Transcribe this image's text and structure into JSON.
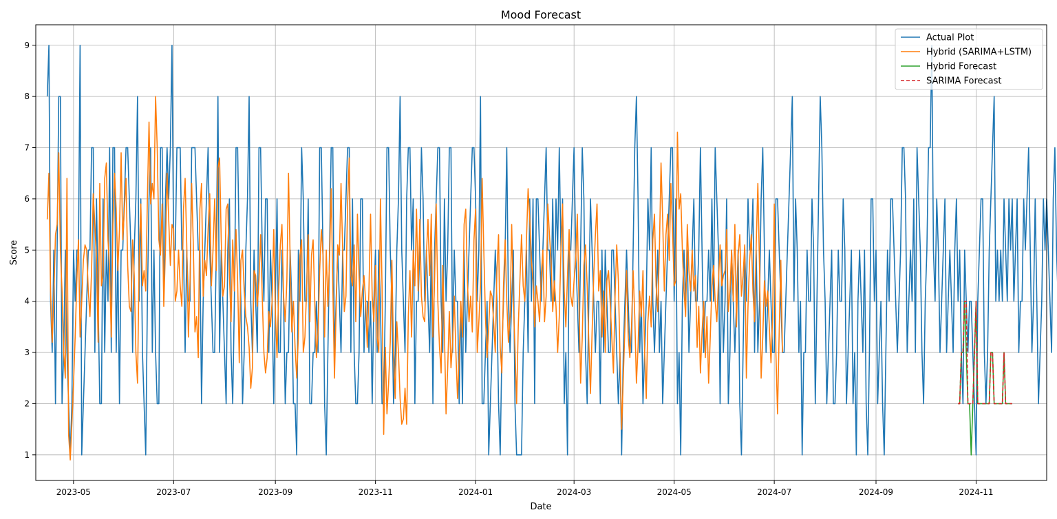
{
  "chart_data": {
    "type": "line",
    "title": "Mood Forecast",
    "xlabel": "Date",
    "ylabel": "Score",
    "xlim": [
      "2023-04-08",
      "2024-12-14"
    ],
    "ylim": [
      0.5,
      9.4
    ],
    "grid": true,
    "legend_position": "top-right",
    "x_ticks": [
      "2023-05",
      "2023-07",
      "2023-09",
      "2023-11",
      "2024-01",
      "2024-03",
      "2024-05",
      "2024-07",
      "2024-09",
      "2024-11"
    ],
    "y_ticks": [
      1,
      2,
      3,
      4,
      5,
      6,
      7,
      8,
      9
    ],
    "colors": {
      "actual": "#1f77b4",
      "hybrid": "#ff7f0e",
      "hybrid_forecast": "#2ca02c",
      "sarima_forecast": "#d62728"
    },
    "series": [
      {
        "name": "Actual Plot",
        "start_date": "2023-04-15",
        "values": [
          8,
          9,
          4,
          3,
          5,
          2,
          5,
          8,
          8,
          2,
          3,
          5,
          3,
          2,
          1,
          2,
          5,
          4,
          5,
          5,
          9,
          1,
          2,
          3,
          4,
          5,
          5,
          7,
          7,
          3,
          6,
          4,
          2,
          2,
          6,
          3,
          5,
          4,
          7,
          3,
          7,
          7,
          3,
          5,
          2,
          5,
          5,
          6,
          7,
          7,
          6,
          5,
          3,
          5,
          6,
          8,
          4,
          6,
          3,
          2,
          1,
          4,
          6,
          7,
          3,
          5,
          3,
          2,
          2,
          7,
          7,
          4,
          6,
          7,
          6,
          7,
          9,
          5,
          5,
          7,
          7,
          7,
          5,
          5,
          3,
          5,
          4,
          4,
          7,
          7,
          7,
          6,
          5,
          5,
          2,
          4,
          5,
          6,
          7,
          5,
          4,
          3,
          3,
          5,
          8,
          3,
          5,
          4,
          3,
          2,
          5,
          6,
          3,
          2,
          4,
          7,
          7,
          5,
          4,
          2,
          3,
          5,
          6,
          8,
          4,
          3,
          5,
          4,
          3,
          7,
          7,
          5,
          4,
          6,
          6,
          3,
          5,
          4,
          2,
          4,
          6,
          3,
          3,
          5,
          4,
          2,
          3,
          3,
          5,
          4,
          2,
          2,
          1,
          5,
          4,
          7,
          6,
          4,
          4,
          6,
          2,
          2,
          3,
          3,
          4,
          3,
          7,
          7,
          5,
          2,
          1,
          3,
          5,
          7,
          7,
          3,
          4,
          5,
          4,
          3,
          5,
          5,
          6,
          7,
          7,
          3,
          6,
          3,
          2,
          2,
          3,
          6,
          6,
          3,
          4,
          4,
          3,
          4,
          2,
          4,
          5,
          3,
          5,
          4,
          2,
          2,
          4,
          7,
          7,
          5,
          4,
          2,
          3,
          5,
          6,
          8,
          5,
          4,
          3,
          6,
          7,
          7,
          5,
          6,
          2,
          4,
          4,
          5,
          7,
          6,
          4,
          5,
          4,
          3,
          5,
          2,
          5,
          6,
          7,
          7,
          4,
          3,
          6,
          4,
          5,
          7,
          7,
          3,
          5,
          4,
          4,
          2,
          4,
          2,
          5,
          3,
          4,
          5,
          6,
          7,
          7,
          6,
          4,
          5,
          8,
          2,
          2,
          3,
          4,
          1,
          2,
          3,
          4,
          5,
          4,
          2,
          1,
          3,
          4,
          5,
          7,
          4,
          3,
          4,
          5,
          2,
          1,
          1,
          1,
          1,
          3,
          4,
          5,
          3,
          6,
          4,
          6,
          2,
          6,
          6,
          5,
          4,
          5,
          6,
          7,
          5,
          5,
          4,
          6,
          4,
          6,
          5,
          7,
          5,
          6,
          2,
          3,
          1,
          5,
          5,
          6,
          7,
          5,
          4,
          3,
          5,
          7,
          6,
          3,
          2,
          4,
          6,
          5,
          4,
          3,
          4,
          4,
          2,
          5,
          3,
          5,
          4,
          3,
          3,
          5,
          5,
          4,
          3,
          2,
          3,
          1,
          3,
          4,
          5,
          4,
          3,
          3,
          5,
          7,
          8,
          6,
          3,
          4,
          2,
          3,
          4,
          6,
          5,
          7,
          4,
          3,
          4,
          5,
          3,
          4,
          2,
          3,
          4,
          5,
          6,
          7,
          7,
          4,
          6,
          2,
          3,
          1,
          4,
          5,
          4,
          5,
          3,
          4,
          5,
          6,
          4,
          4,
          5,
          7,
          5,
          3,
          4,
          4,
          5,
          4,
          6,
          4,
          7,
          6,
          5,
          2,
          5,
          3,
          4,
          6,
          2,
          3,
          5,
          4,
          3,
          4,
          5,
          2,
          1,
          3,
          5,
          4,
          6,
          5,
          5,
          6,
          3,
          5,
          3,
          4,
          6,
          7,
          5,
          3,
          4,
          5,
          4,
          3,
          3,
          6,
          6,
          5,
          4,
          3,
          3,
          4,
          5,
          6,
          7,
          8,
          4,
          6,
          5,
          3,
          4,
          1,
          3,
          3,
          5,
          4,
          4,
          6,
          5,
          2,
          4,
          6,
          8,
          7,
          5,
          4,
          2,
          3,
          4,
          5,
          2,
          2,
          3,
          5,
          4,
          4,
          6,
          5,
          2,
          3,
          4,
          5,
          2,
          3,
          1,
          4,
          5,
          4,
          3,
          5,
          2,
          1,
          3,
          6,
          6,
          4,
          5,
          2,
          3,
          4,
          2,
          1,
          3,
          5,
          4,
          6,
          6,
          5,
          4,
          3,
          4,
          5,
          7,
          7,
          6,
          3,
          4,
          5,
          4,
          6,
          3,
          7,
          6,
          5,
          3,
          2,
          4,
          5,
          7,
          7,
          9,
          5,
          4,
          6,
          5,
          3,
          4,
          5,
          6,
          3,
          4,
          5,
          4,
          3,
          5,
          6,
          4,
          5,
          3,
          2,
          5,
          4,
          3,
          4,
          4,
          3,
          2,
          1,
          4,
          5,
          6,
          6,
          3,
          2,
          3,
          5,
          6,
          7,
          8,
          4,
          5,
          4,
          5,
          4,
          6,
          5,
          4,
          6,
          5,
          6,
          4,
          5,
          6,
          3,
          4,
          4,
          6,
          5,
          6,
          7,
          5,
          3,
          4,
          6,
          4,
          2,
          3,
          4,
          6,
          5,
          6,
          5,
          4,
          3,
          6,
          7,
          5,
          4,
          3,
          2,
          1,
          6,
          5,
          2,
          2,
          2,
          3,
          3,
          4,
          4,
          2
        ]
      },
      {
        "name": "Hybrid (SARIMA+LSTM)",
        "start_date": "2023-04-15",
        "values": [
          5.6,
          6.5,
          4.2,
          3.2,
          4.1,
          5.3,
          5.5,
          6.9,
          5.0,
          4.2,
          3.0,
          2.5,
          6.4,
          1.4,
          0.9,
          1.6,
          2.4,
          3.3,
          4.4,
          5.2,
          3.3,
          4.0,
          4.8,
          5.1,
          5.0,
          4.2,
          3.7,
          4.6,
          6.1,
          5.5,
          4.8,
          3.2,
          6.3,
          4.3,
          4.5,
          6.4,
          6.7,
          5.2,
          4.6,
          3.3,
          5.5,
          6.5,
          5.8,
          4.6,
          5.4,
          6.9,
          5.2,
          5.8,
          6.4,
          4.7,
          3.9,
          3.8,
          5.2,
          4.5,
          3.0,
          2.4,
          4.8,
          5.9,
          4.3,
          4.6,
          4.2,
          6.0,
          7.5,
          5.9,
          6.3,
          6.0,
          8.0,
          7.0,
          5.2,
          4.9,
          5.9,
          3.9,
          5.0,
          6.5,
          5.6,
          4.7,
          5.5,
          5.4,
          4.0,
          4.2,
          5.0,
          4.3,
          3.9,
          5.8,
          6.4,
          5.1,
          3.3,
          4.4,
          6.3,
          5.1,
          3.4,
          3.7,
          2.9,
          5.8,
          6.3,
          4.1,
          4.8,
          4.5,
          5.4,
          6.1,
          4.3,
          5.0,
          6.0,
          4.6,
          6.6,
          6.8,
          5.2,
          4.1,
          4.3,
          5.8,
          5.9,
          4.5,
          3.6,
          5.2,
          4.2,
          5.4,
          4.4,
          2.8,
          4.8,
          5.0,
          4.2,
          3.7,
          3.5,
          3.1,
          2.3,
          2.7,
          4.6,
          4.5,
          3.9,
          4.4,
          5.3,
          4.1,
          3.0,
          2.6,
          2.9,
          3.8,
          3.5,
          4.0,
          5.4,
          3.8,
          2.9,
          4.2,
          5.1,
          5.5,
          4.1,
          3.6,
          4.4,
          6.5,
          4.8,
          3.4,
          4.0,
          3.1,
          2.5,
          3.3,
          4.9,
          5.2,
          3.0,
          3.3,
          4.2,
          5.3,
          3.6,
          4.9,
          5.2,
          4.0,
          2.9,
          3.4,
          4.6,
          5.4,
          4.9,
          3.3,
          5.0,
          3.9,
          4.8,
          6.2,
          4.3,
          2.5,
          3.8,
          5.1,
          4.9,
          6.3,
          5.0,
          3.8,
          4.1,
          5.9,
          6.8,
          4.5,
          4.3,
          5.1,
          3.6,
          5.7,
          4.5,
          3.7,
          4.2,
          4.5,
          4.0,
          3.1,
          4.2,
          5.7,
          4.1,
          3.6,
          4.7,
          3.3,
          3.0,
          6.0,
          4.3,
          1.4,
          3.1,
          1.8,
          2.4,
          3.2,
          4.8,
          3.0,
          2.1,
          3.6,
          3.0,
          2.1,
          1.6,
          1.7,
          2.3,
          1.6,
          3.7,
          4.6,
          3.3,
          5.0,
          4.3,
          5.8,
          4.2,
          5.6,
          4.1,
          3.7,
          3.6,
          4.9,
          5.6,
          4.5,
          5.7,
          3.3,
          4.4,
          5.9,
          4.0,
          3.1,
          2.6,
          4.7,
          3.4,
          1.8,
          2.7,
          3.8,
          2.7,
          3.2,
          4.1,
          3.0,
          2.1,
          2.9,
          4.0,
          3.3,
          5.5,
          5.8,
          4.4,
          3.6,
          4.1,
          3.4,
          5.2,
          5.8,
          3.0,
          3.6,
          4.3,
          6.4,
          5.0,
          3.7,
          2.9,
          3.5,
          4.2,
          4.1,
          3.6,
          3.0,
          4.6,
          5.3,
          3.1,
          2.6,
          4.3,
          5.2,
          4.0,
          3.2,
          3.7,
          5.5,
          4.0,
          3.1,
          2.0,
          3.5,
          4.4,
          5.3,
          4.3,
          4.0,
          5.2,
          6.2,
          5.6,
          4.8,
          4.4,
          3.5,
          4.3,
          4.0,
          3.6,
          4.5,
          5.0,
          3.6,
          4.1,
          5.9,
          5.3,
          4.8,
          3.8,
          4.4,
          3.9,
          3.0,
          3.7,
          5.0,
          5.9,
          4.2,
          3.5,
          4.5,
          5.4,
          4.1,
          3.9,
          4.4,
          4.8,
          5.7,
          4.0,
          2.4,
          3.3,
          4.7,
          5.1,
          4.3,
          3.2,
          2.2,
          3.4,
          4.5,
          5.3,
          5.9,
          4.2,
          4.6,
          3.3,
          4.2,
          3.0,
          4.4,
          4.6,
          4.0,
          3.3,
          2.6,
          4.1,
          5.1,
          4.4,
          2.9,
          1.5,
          2.5,
          3.5,
          4.6,
          3.3,
          2.9,
          3.5,
          4.6,
          3.7,
          2.4,
          3.1,
          4.2,
          3.7,
          4.6,
          3.0,
          2.1,
          3.6,
          4.1,
          3.5,
          5.2,
          5.7,
          4.3,
          3.8,
          5.0,
          6.7,
          5.6,
          4.2,
          5.3,
          5.7,
          4.8,
          6.3,
          5.4,
          4.3,
          4.4,
          7.3,
          5.8,
          6.1,
          5.0,
          4.2,
          3.7,
          5.5,
          4.6,
          4.2,
          5.0,
          4.2,
          4.5,
          3.1,
          3.9,
          2.6,
          3.4,
          4.0,
          2.9,
          3.7,
          2.4,
          3.3,
          4.3,
          4.7,
          4.0,
          3.6,
          4.4,
          5.1,
          4.3,
          4.5,
          4.6,
          5.4,
          3.8,
          4.2,
          5.0,
          4.0,
          5.5,
          3.5,
          4.9,
          5.3,
          4.1,
          4.5,
          5.1,
          2.5,
          3.9,
          4.8,
          5.3,
          4.2,
          3.6,
          5.1,
          6.3,
          4.7,
          2.5,
          3.3,
          4.4,
          3.9,
          4.2,
          3.5,
          2.8,
          3.7,
          5.9,
          3.0,
          1.8,
          3.4,
          4.8,
          3.0
        ]
      },
      {
        "name": "Hybrid Forecast",
        "start_date": "2024-10-21",
        "values": [
          2,
          2,
          3,
          3,
          4,
          3,
          2,
          2,
          1,
          2,
          3,
          4,
          2,
          2,
          2,
          2,
          2,
          2,
          2,
          2,
          3,
          3,
          2,
          2,
          2,
          2,
          2,
          2,
          3,
          2,
          2,
          2,
          2,
          2
        ]
      },
      {
        "name": "SARIMA Forecast",
        "start_date": "2024-10-21",
        "values": [
          2,
          2,
          3,
          3,
          4,
          4,
          2,
          2,
          2,
          2,
          3,
          4,
          2,
          2,
          2,
          2,
          2,
          2,
          2,
          2,
          3,
          3,
          2,
          2,
          2,
          2,
          2,
          2,
          3,
          2,
          2,
          2,
          2,
          2
        ]
      }
    ]
  }
}
